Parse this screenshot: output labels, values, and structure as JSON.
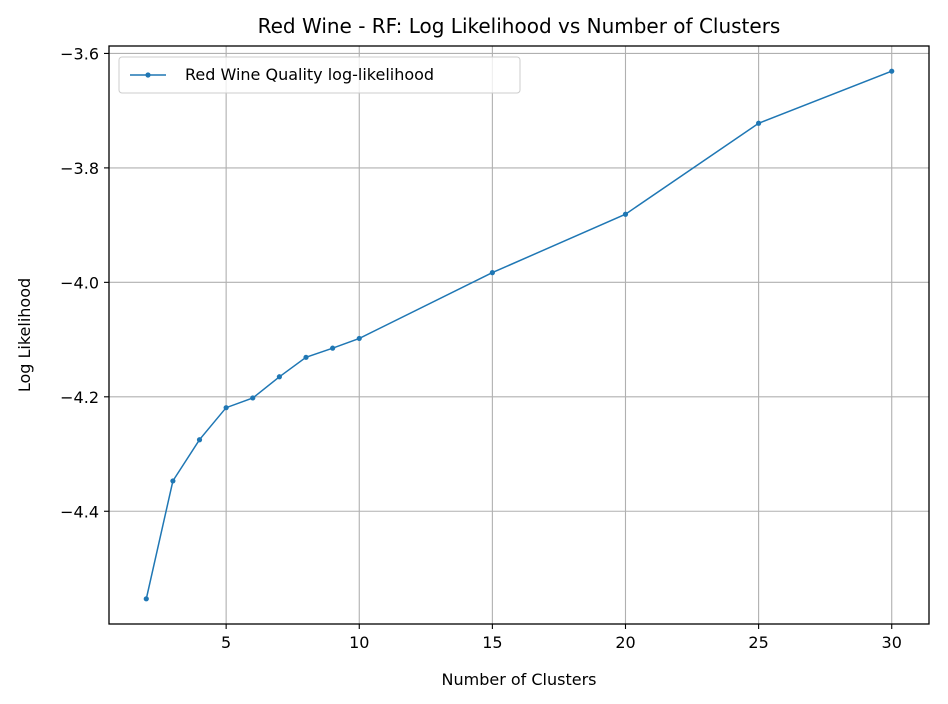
{
  "chart_data": {
    "type": "line",
    "title": "Red Wine - RF: Log Likelihood vs Number of Clusters",
    "xlabel": "Number of Clusters",
    "ylabel": "Log Likelihood",
    "x": [
      2,
      3,
      4,
      5,
      6,
      7,
      8,
      9,
      10,
      15,
      20,
      25,
      30
    ],
    "series": [
      {
        "name": "Red Wine Quality log-likelihood",
        "color": "#1f77b4",
        "values": [
          -4.553,
          -4.347,
          -4.275,
          -4.219,
          -4.202,
          -4.165,
          -4.131,
          -4.115,
          -4.098,
          -3.983,
          -3.881,
          -3.722,
          -3.631
        ]
      }
    ],
    "xlim": [
      0.6,
      31.4
    ],
    "ylim": [
      -4.597,
      -3.587
    ],
    "xticks": [
      5,
      10,
      15,
      20,
      25,
      30
    ],
    "yticks": [
      -4.4,
      -4.2,
      -4.0,
      -3.8,
      -3.6
    ],
    "xtick_labels": [
      "5",
      "10",
      "15",
      "20",
      "25",
      "30"
    ],
    "ytick_labels": [
      "−4.4",
      "−4.2",
      "−4.0",
      "−3.8",
      "−3.6"
    ],
    "grid": true,
    "legend_position": "upper-left"
  }
}
